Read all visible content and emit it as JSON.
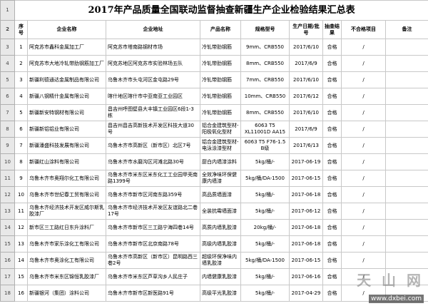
{
  "title": "2017年产品质量全国联动监督抽查新疆生产企业检验结果汇总表",
  "row_numbers": [
    1,
    2,
    3,
    4,
    5,
    6,
    7,
    8,
    9,
    10,
    11,
    12,
    13,
    14,
    15,
    16,
    17,
    18
  ],
  "table": {
    "header": [
      "序号",
      "企业名称",
      "企业地址",
      "产品名称",
      "规格型号",
      "生产日期/批号",
      "抽查结果",
      "不合格项目",
      "备注"
    ],
    "rows": [
      [
        1,
        "阿克苏市鑫科金属加工厂",
        "阿克苏市塔南路钢材市场",
        "冷轧带肋钢筋",
        "9mm、CRB550",
        "2017/6/10",
        "合格",
        "/"
      ],
      [
        2,
        "阿克苏市大地冷轧带肋钢筋加工厂",
        "阿克苏地区阿克苏市实验林场五队",
        "冷轧带肋钢筋",
        "8mm、CRB550",
        "2017/6/9",
        "合格",
        "/"
      ],
      [
        3,
        "新疆利德通达金属制品有限公司",
        "乌鲁木齐市头屯河区金屯路29号",
        "冷轧带肋钢筋",
        "7mm、CRB550",
        "2017/6/10",
        "合格",
        "/"
      ],
      [
        4,
        "新疆八钢精什金属有限公司",
        "喀什地区喀什市中亚南亚工业园区",
        "冷轧带肋钢筋",
        "10mm、CRB550",
        "2017/6/12",
        "合格",
        "/"
      ],
      [
        5,
        "新疆新安特钢材有限公司",
        "昌吉州呼图壁县大丰镇工业园区6段1-3栋",
        "冷轧带肋钢筋",
        "8mm、CRB550",
        "2017/6/10",
        "合格",
        "/"
      ],
      [
        6,
        "新疆新铝铝业有限公司",
        "昌吉州昌吉高新技术开发区科技大道30号",
        "铝合金建筑型材-阳极氧化型材",
        "6063 T5 XL11001D AA15",
        "2017/6/9",
        "合格",
        "/"
      ],
      [
        7,
        "新疆潘盛科技发展有限公司",
        "乌鲁木齐市高新区（新市区）北区7号",
        "铝合金建筑型材-电泳涂漆型材",
        "6063 T5 F76-1.5 B级",
        "2017/6/13",
        "合格",
        "/"
      ],
      [
        8,
        "新疆红山涂料有限公司",
        "乌鲁木齐市水磨沟区河滩北路30号",
        "厨白内墙漆涂料",
        "5kg/桶/-",
        "2017-06-19",
        "合格",
        "/"
      ],
      [
        9,
        "乌鲁木齐市奥翔尔化工有限公司",
        "乌鲁木齐市米东区米东化工工业园甲壳南路1399号",
        "全效净味环保健康内墙漆",
        "5kg/桶/DA-1500",
        "2017-06-15",
        "合格",
        "/"
      ],
      [
        10,
        "乌鲁木齐市世纪春工贸有限公司",
        "乌鲁木齐市新市区河南东路359号",
        "高品质墙面漆",
        "5kg/桶/-",
        "2017-06-18",
        "合格",
        "/"
      ],
      [
        11,
        "乌鲁木齐经济技术开发区威尔斯乳胶漆厂",
        "乌鲁木齐市经济技术开发区友谊路北二巷17号",
        "全装抗霉墙面漆",
        "5kg/桶/-",
        "2017-06-12",
        "合格",
        "/"
      ],
      [
        12,
        "新市区三工路红日东升涂料厂",
        "乌鲁木齐市新市区三工路宁海四巷14号",
        "高质内墙乳胶漆",
        "20kg/桶/-",
        "2017-06-18",
        "合格",
        "/"
      ],
      [
        13,
        "乌鲁木齐市家乐涂化工有限公司",
        "乌鲁木齐市新市区北京南路78号",
        "高级内墙乳胶漆",
        "5kg/桶/-",
        "2017-06-18",
        "合格",
        "/"
      ],
      [
        14,
        "乌鲁木齐市奥涂化工有限公司",
        "乌鲁木齐市高新区（新市区）昆明路西三巷2号",
        "超级环保净味内墙乳胶漆",
        "5kg/桶/DA-1500",
        "2017-06-15",
        "合格",
        "/"
      ],
      [
        15,
        "乌鲁木齐市米东区锦恒乳胶漆厂",
        "乌鲁木齐市米东区芦草沟乡人民庄子",
        "内墙健康乳胶漆",
        "5kg/桶/-",
        "2017-06-16",
        "合格",
        "/"
      ],
      [
        16,
        "新疆银河（集团）涂料公司",
        "乌鲁木齐市新市区新医路91号",
        "高级平光乳胶漆",
        "5kg/桶/-",
        "2017-04-29",
        "合格",
        "/"
      ]
    ]
  },
  "watermark": {
    "site": "天 山 网",
    "url": "www.dxbei.com"
  }
}
